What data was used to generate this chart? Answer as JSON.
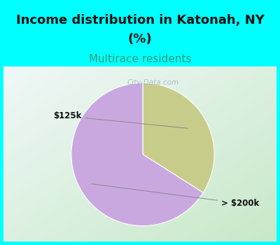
{
  "title_line1": "Income distribution in Katonah, NY",
  "title_line2": "(%)",
  "subtitle": "Multirace residents",
  "slices": [
    {
      "label": "$125k",
      "value": 34,
      "color": "#c8cc8a"
    },
    {
      "label": "> $200k",
      "value": 66,
      "color": "#c9a8e0"
    }
  ],
  "title_fontsize": 13,
  "subtitle_fontsize": 11,
  "subtitle_color": "#2e9e7a",
  "title_bg_color": "#00ffff",
  "watermark": "City-Data.com",
  "start_angle": 90,
  "counterclock": false,
  "border_color": "#00e5e5",
  "border_width": 7,
  "chart_bg_gradient_left": "#c8e8c8",
  "chart_bg_gradient_right": "#f0f8f8"
}
